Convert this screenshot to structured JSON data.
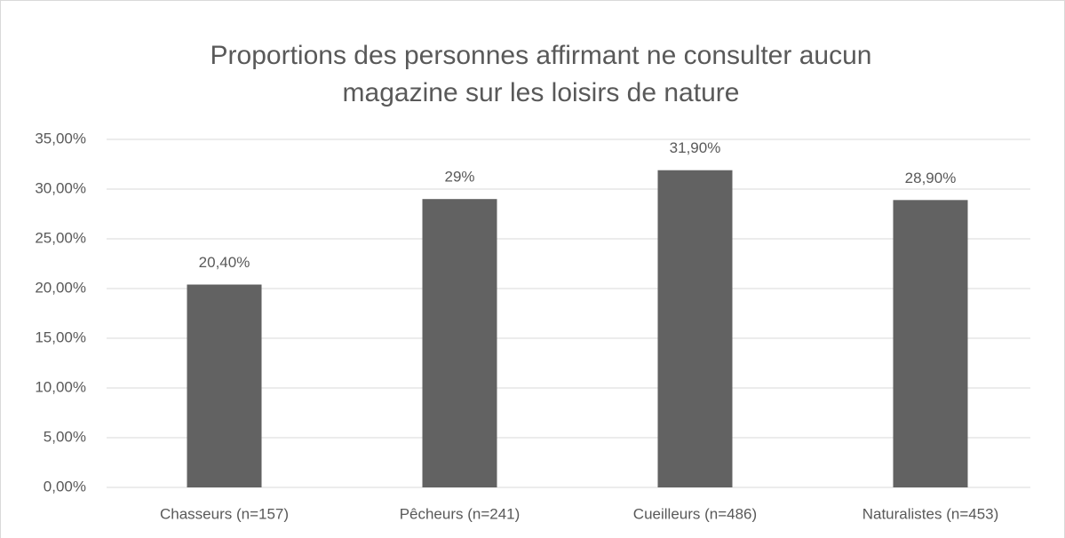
{
  "chart_data": {
    "type": "bar",
    "title": [
      "Proportions des personnes affirmant ne consulter aucun",
      "magazine sur les loisirs de nature"
    ],
    "categories": [
      "Chasseurs (n=157)",
      "Pêcheurs (n=241)",
      "Cueilleurs (n=486)",
      "Naturalistes (n=453)"
    ],
    "values": [
      20.4,
      29,
      31.9,
      28.9
    ],
    "value_labels": [
      "20,40%",
      "29%",
      "31,90%",
      "28,90%"
    ],
    "color": "#626262",
    "ylim": [
      0,
      35
    ],
    "yticks": [
      {
        "value": 0,
        "label": "0,00%"
      },
      {
        "value": 5,
        "label": "5,00%"
      },
      {
        "value": 10,
        "label": "10,00%"
      },
      {
        "value": 15,
        "label": "15,00%"
      },
      {
        "value": 20,
        "label": "20,00%"
      },
      {
        "value": 25,
        "label": "25,00%"
      },
      {
        "value": 30,
        "label": "30,00%"
      },
      {
        "value": 35,
        "label": "35,00%"
      }
    ],
    "grid": true
  }
}
